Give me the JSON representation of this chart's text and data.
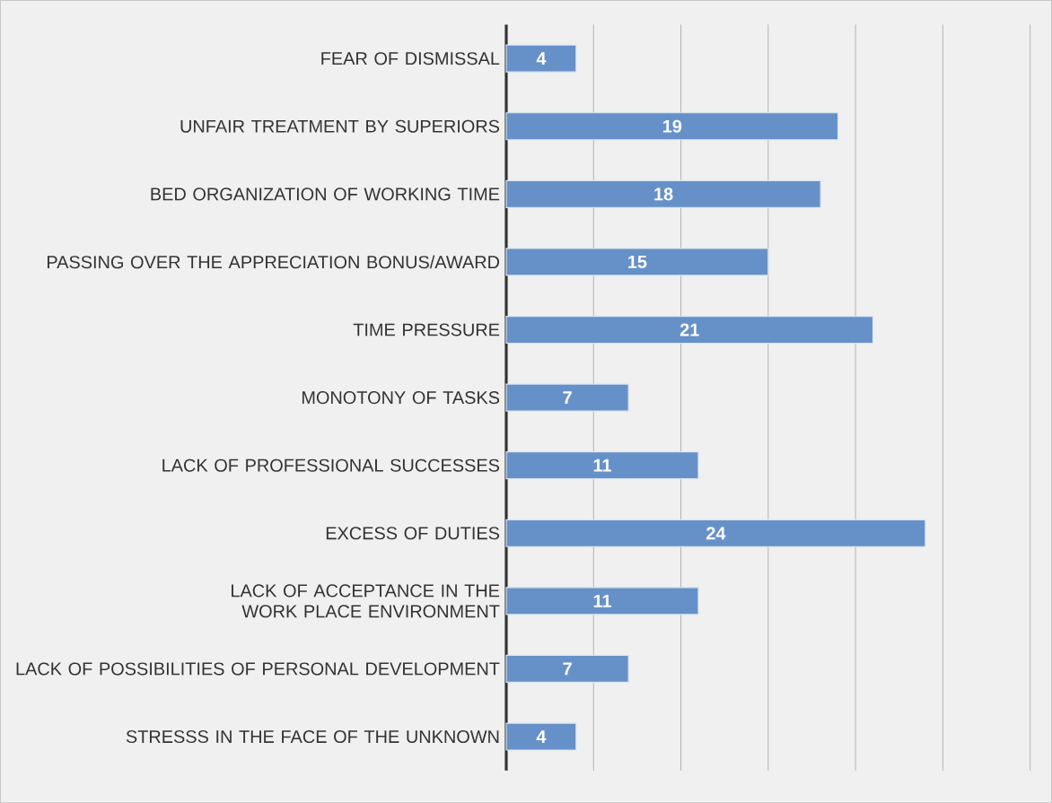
{
  "chart_data": {
    "type": "bar",
    "orientation": "horizontal",
    "categories": [
      "FEAR OF DISMISSAL",
      "UNFAIR TREATMENT BY SUPERIORS",
      "BED ORGANIZATION OF WORKING TIME",
      "PASSING OVER THE APPRECIATION BONUS/AWARD",
      "TIME PRESSURE",
      "MONOTONY OF TASKS",
      "LACK OF PROFESSIONAL SUCCESSES",
      "EXCESS OF DUTIES",
      "LACK OF ACCEPTANCE IN THE WORK PLACE ENVIRONMENT",
      "LACK OF POSSIBILITIES OF PERSONAL DEVELOPMENT",
      "STRESSS IN THE FACE OF THE UNKNOWN"
    ],
    "values": [
      4,
      19,
      18,
      15,
      21,
      7,
      11,
      24,
      11,
      7,
      4
    ],
    "color": "#6691c8",
    "tick_labels": "y",
    "grid": "x",
    "data_labels": true
  }
}
